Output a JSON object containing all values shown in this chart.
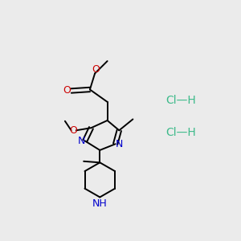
{
  "bg": "#ebebeb",
  "bc": "#000000",
  "nc": "#0000cc",
  "oc": "#cc0000",
  "hclc": "#3dba8a",
  "lw": 1.4,
  "doffset": 3.5,
  "figsize": [
    3.0,
    3.0
  ],
  "dpi": 100,
  "hcl1": [
    218,
    115
  ],
  "hcl2": [
    218,
    168
  ],
  "hcl_text": "Cl—H"
}
